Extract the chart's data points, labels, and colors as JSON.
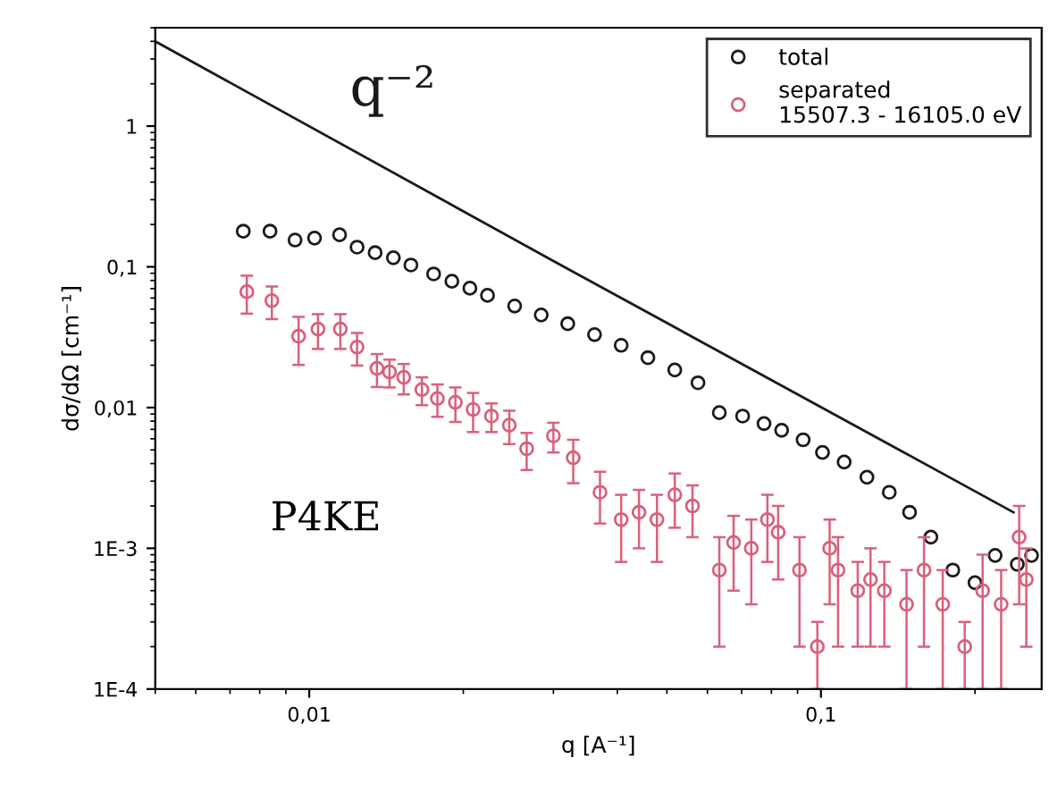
{
  "chart_data": {
    "type": "scatter",
    "xlabel": "q [A⁻¹]",
    "ylabel": "dσ/dΩ [cm⁻¹]",
    "log": "xy",
    "xlim": [
      0.005,
      0.27
    ],
    "ylim": [
      0.0001,
      5
    ],
    "xticks": [
      {
        "value": 0.01,
        "label": "0,01"
      },
      {
        "value": 0.1,
        "label": "0,1"
      }
    ],
    "yticks": [
      {
        "value": 0.0001,
        "label": "1E-4"
      },
      {
        "value": 0.001,
        "label": "1E-3"
      },
      {
        "value": 0.01,
        "label": "0,01"
      },
      {
        "value": 0.1,
        "label": "0,1"
      },
      {
        "value": 1,
        "label": "1"
      }
    ],
    "legend": "top right",
    "marker": "circle",
    "grid": false,
    "annotations": [
      "P4KE"
    ],
    "series": [
      {
        "name": "q⁻²",
        "type": "line",
        "marker": "none",
        "color": "#1a1a1a",
        "x": [
          0.005,
          0.03,
          0.238
        ],
        "values": [
          4.0,
          0.11,
          0.0018
        ]
      },
      {
        "name": "total",
        "color": "#1a1a1a",
        "x": [
          0.00743,
          0.00838,
          0.00938,
          0.01024,
          0.01146,
          0.0124,
          0.01345,
          0.0146,
          0.0158,
          0.0175,
          0.019,
          0.0206,
          0.0223,
          0.0252,
          0.0284,
          0.032,
          0.0361,
          0.0407,
          0.0459,
          0.0518,
          0.0575,
          0.0633,
          0.0703,
          0.0774,
          0.0838,
          0.0923,
          0.1007,
          0.111,
          0.123,
          0.136,
          0.149,
          0.164,
          0.181,
          0.2,
          0.219,
          0.242,
          0.258
        ],
        "values": [
          0.179,
          0.179,
          0.155,
          0.16,
          0.169,
          0.138,
          0.126,
          0.116,
          0.103,
          0.089,
          0.079,
          0.0705,
          0.0627,
          0.0527,
          0.0455,
          0.0394,
          0.033,
          0.0277,
          0.0226,
          0.0185,
          0.015,
          0.0092,
          0.0087,
          0.0077,
          0.0069,
          0.0059,
          0.0048,
          0.0041,
          0.0032,
          0.0025,
          0.0018,
          0.0012,
          0.0007,
          0.00057,
          0.00089,
          0.00077,
          0.00089
        ]
      },
      {
        "name": "separated\n15507.3 - 16105.0 eV",
        "color": "#d9607a",
        "x": [
          0.00755,
          0.00845,
          0.00953,
          0.0104,
          0.0115,
          0.0124,
          0.01356,
          0.01435,
          0.0153,
          0.0166,
          0.0178,
          0.0193,
          0.0209,
          0.0227,
          0.0246,
          0.0266,
          0.03,
          0.0328,
          0.037,
          0.0407,
          0.0441,
          0.0478,
          0.0518,
          0.0561,
          0.0633,
          0.0675,
          0.0731,
          0.0786,
          0.0825,
          0.0908,
          0.0984,
          0.104,
          0.108,
          0.118,
          0.125,
          0.133,
          0.147,
          0.159,
          0.173,
          0.191,
          0.207,
          0.225,
          0.244,
          0.252
        ],
        "values": [
          0.0665,
          0.0575,
          0.0321,
          0.0361,
          0.0361,
          0.0269,
          0.019,
          0.0179,
          0.0164,
          0.0134,
          0.0116,
          0.0109,
          0.0097,
          0.0087,
          0.0075,
          0.0051,
          0.0063,
          0.0044,
          0.0025,
          0.0016,
          0.0018,
          0.0016,
          0.0024,
          0.002,
          0.0007,
          0.0011,
          0.001,
          0.0016,
          0.0013,
          0.0007,
          0.0002,
          0.001,
          0.0007,
          0.0005,
          0.0006,
          0.0005,
          0.0004,
          0.0007,
          0.0004,
          0.0002,
          0.0005,
          0.0004,
          0.0012,
          0.0006
        ],
        "errors": [
          0.02,
          0.015,
          0.012,
          0.01,
          0.01,
          0.007,
          0.005,
          0.004,
          0.004,
          0.003,
          0.003,
          0.003,
          0.003,
          0.002,
          0.002,
          0.0015,
          0.0015,
          0.0015,
          0.001,
          0.0008,
          0.0008,
          0.0008,
          0.001,
          0.0008,
          0.0005,
          0.0006,
          0.0006,
          0.0008,
          0.0007,
          0.0005,
          0.0001,
          0.0006,
          0.0005,
          0.0003,
          0.0004,
          0.0003,
          0.0003,
          0.0005,
          0.0003,
          0.0001,
          0.0004,
          0.0003,
          0.0008,
          0.0004
        ]
      }
    ]
  }
}
